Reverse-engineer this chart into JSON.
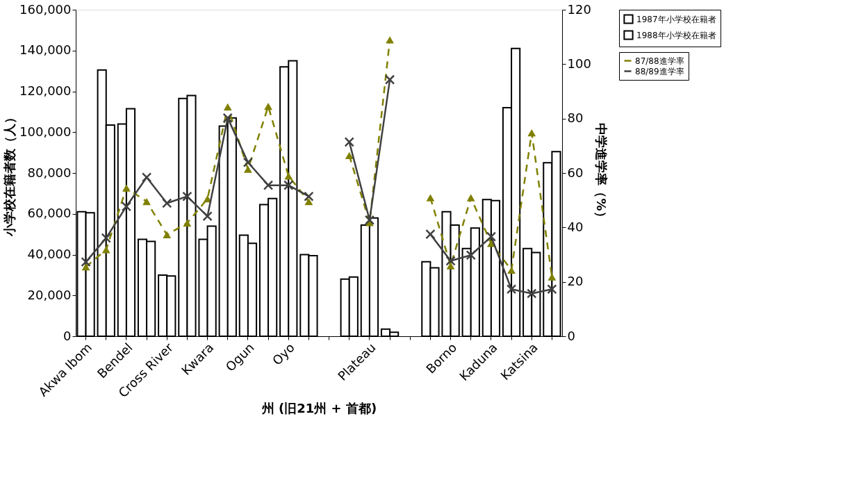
{
  "chart_data": {
    "type": "bar",
    "xlabel": "州 (旧21州 + 首都)",
    "ylabel": "小学校在籍者数（人）",
    "y2label": "中学進学率（%）",
    "categories": [
      "Akwa Ibom",
      null,
      "Bendel",
      null,
      "Cross River",
      null,
      "Kwara",
      null,
      "Ogun",
      null,
      "Oyo",
      null,
      null,
      null,
      "Plateau",
      null,
      null,
      null,
      "Borno",
      null,
      "Kaduna",
      null,
      "Katsina",
      null
    ],
    "series": [
      {
        "name": "1987年小学校在籍者",
        "color": "#ffffff",
        "values": [
          61000,
          130500,
          104000,
          47500,
          30000,
          116500,
          47500,
          103000,
          49500,
          64500,
          132000,
          40000,
          null,
          28000,
          54500,
          3500,
          null,
          36500,
          61000,
          43000,
          67000,
          112000,
          43000,
          85000
        ]
      },
      {
        "name": "1988年小学校在籍者",
        "color": "#ffffff",
        "values": [
          60500,
          103500,
          111500,
          46500,
          29500,
          118000,
          54000,
          107000,
          45500,
          67500,
          135000,
          39500,
          null,
          29000,
          58000,
          2000,
          null,
          33500,
          54500,
          53000,
          66500,
          141000,
          41000,
          90500
        ]
      },
      {
        "name": "87/88進学率",
        "type": "line",
        "axis": "y2",
        "color": "#808000",
        "marker": "triangle",
        "line_style": "dashed",
        "values": [
          25.5,
          31.8,
          54.5,
          49.5,
          37.3,
          41.6,
          50.5,
          84.3,
          61.4,
          84.5,
          58.9,
          49.5,
          null,
          66.4,
          41.8,
          108.9,
          null,
          50.9,
          25.9,
          50.9,
          34.1,
          24.3,
          74.8,
          21.8
        ]
      },
      {
        "name": "88/89進学率",
        "type": "line",
        "axis": "y2",
        "color": "#404040",
        "marker": "cross",
        "line_style": "solid",
        "values": [
          27.3,
          36.1,
          47.7,
          58.4,
          48.9,
          51.4,
          44.1,
          80.2,
          63.9,
          55.5,
          55.5,
          51.4,
          null,
          71.4,
          42.7,
          94.3,
          null,
          37.5,
          27.7,
          29.8,
          36.6,
          17.3,
          15.7,
          17.3
        ]
      }
    ],
    "ylim": [
      0,
      160000
    ],
    "yticks": [
      {
        "value": 0,
        "label": "0"
      },
      {
        "value": 20000,
        "label": "20,000"
      },
      {
        "value": 40000,
        "label": "40,000"
      },
      {
        "value": 60000,
        "label": "60,000"
      },
      {
        "value": 80000,
        "label": "80,000"
      },
      {
        "value": 100000,
        "label": "100,000"
      },
      {
        "value": 120000,
        "label": "120,000"
      },
      {
        "value": 140000,
        "label": "140,000"
      },
      {
        "value": 160000,
        "label": "160,000"
      }
    ],
    "y2lim": [
      0,
      120
    ],
    "y2ticks": [
      0,
      20,
      40,
      60,
      80,
      100,
      120
    ],
    "legend": "top right",
    "grid": false
  }
}
